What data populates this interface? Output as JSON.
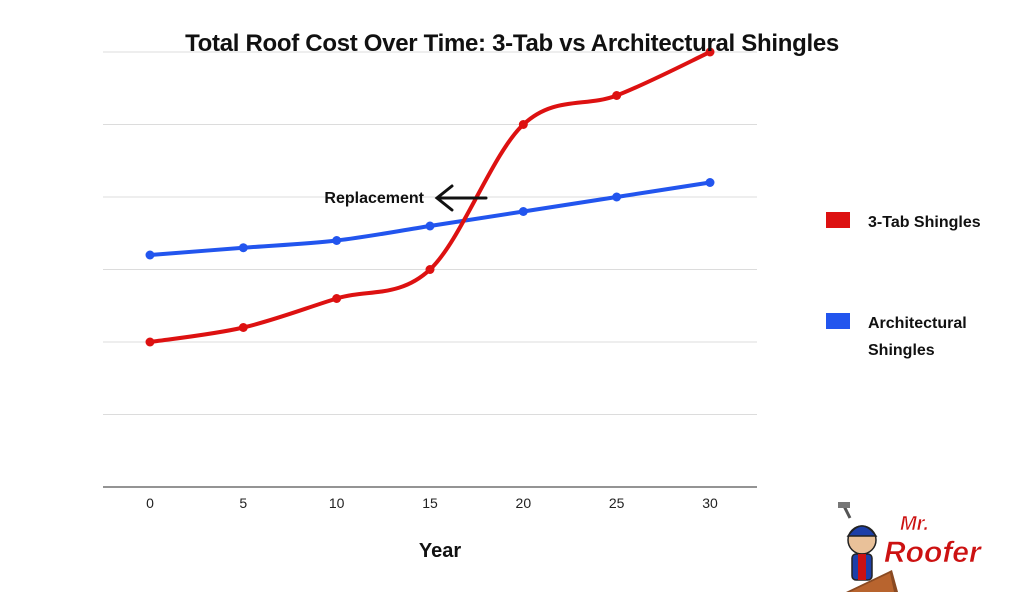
{
  "chart_data": {
    "type": "line",
    "title": "Total Roof Cost Over Time: 3-Tab vs Architectural Shingles",
    "xlabel": "Year",
    "ylabel": "",
    "x": [
      0,
      5,
      10,
      15,
      20,
      25,
      30
    ],
    "ylim": [
      0,
      6
    ],
    "grid": true,
    "legend_placement": "right",
    "series": [
      {
        "name": "3-Tab Shingles",
        "color": "#dd1111",
        "values": [
          2.0,
          2.2,
          2.6,
          3.0,
          5.0,
          5.4,
          6.0
        ]
      },
      {
        "name": "Architectural Shingles",
        "color": "#2255ee",
        "values": [
          3.2,
          3.3,
          3.4,
          3.6,
          3.8,
          4.0,
          4.2
        ]
      }
    ],
    "annotations": [
      {
        "text": "Replacement",
        "arrow": "left-arrow-icon"
      }
    ]
  },
  "logo": {
    "line1": "Mr.",
    "line2": "Roofer",
    "color": "#cc1111"
  }
}
